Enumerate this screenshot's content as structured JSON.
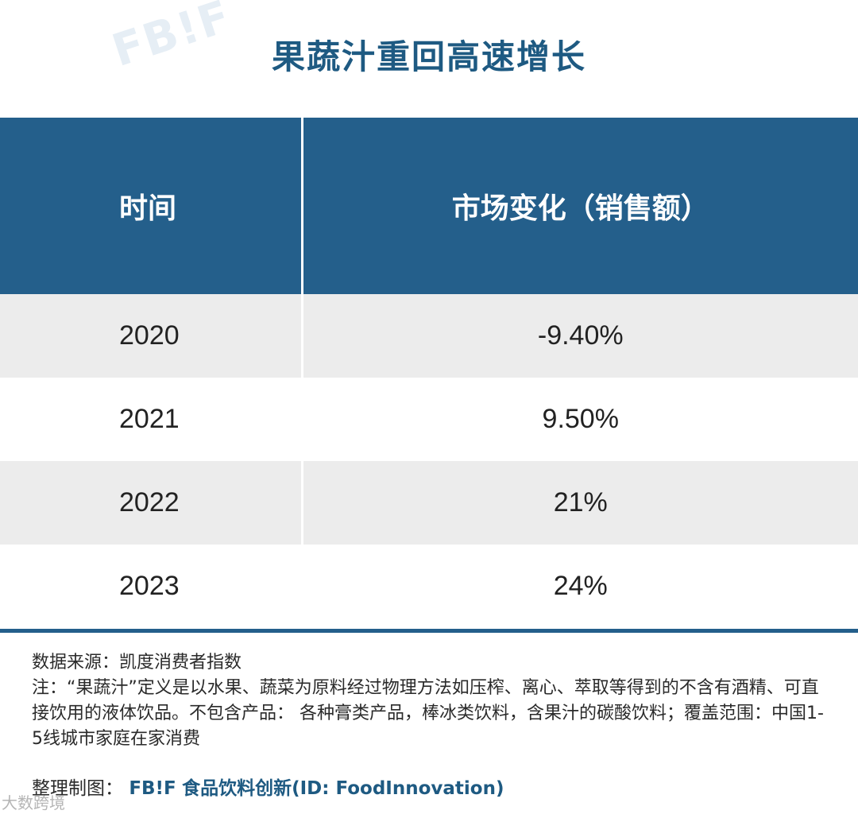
{
  "title": "果蔬汁重回高速增长",
  "watermark_text": "FB!F",
  "chart_data": {
    "type": "table",
    "title": "果蔬汁重回高速增长",
    "columns": [
      "时间",
      "市场变化（销售额）"
    ],
    "rows": [
      {
        "year": "2020",
        "change": "-9.40%",
        "change_pct": -9.4
      },
      {
        "year": "2021",
        "change": "9.50%",
        "change_pct": 9.5
      },
      {
        "year": "2022",
        "change": "21%",
        "change_pct": 21
      },
      {
        "year": "2023",
        "change": "24%",
        "change_pct": 24
      }
    ]
  },
  "notes": {
    "source": "数据来源：凯度消费者指数",
    "definition": "注：“果蔬汁”定义是以水果、蔬菜为原料经过物理方法如压榨、离心、萃取等得到的不含有酒精、可直接饮用的液体饮品。不包含产品： 各种膏类产品，棒冰类饮料，含果汁的碳酸饮料；覆盖范围：中国1-5线城市家庭在家消费"
  },
  "credit": {
    "label": "整理制图：",
    "brand": "FB!F",
    "publisher": "食品饮料创新(ID: FoodInnovation)"
  },
  "corner_mark": "大数跨境",
  "colors": {
    "header_bg": "#245f8b",
    "title": "#1e5a82",
    "shaded_row": "#ececec"
  }
}
